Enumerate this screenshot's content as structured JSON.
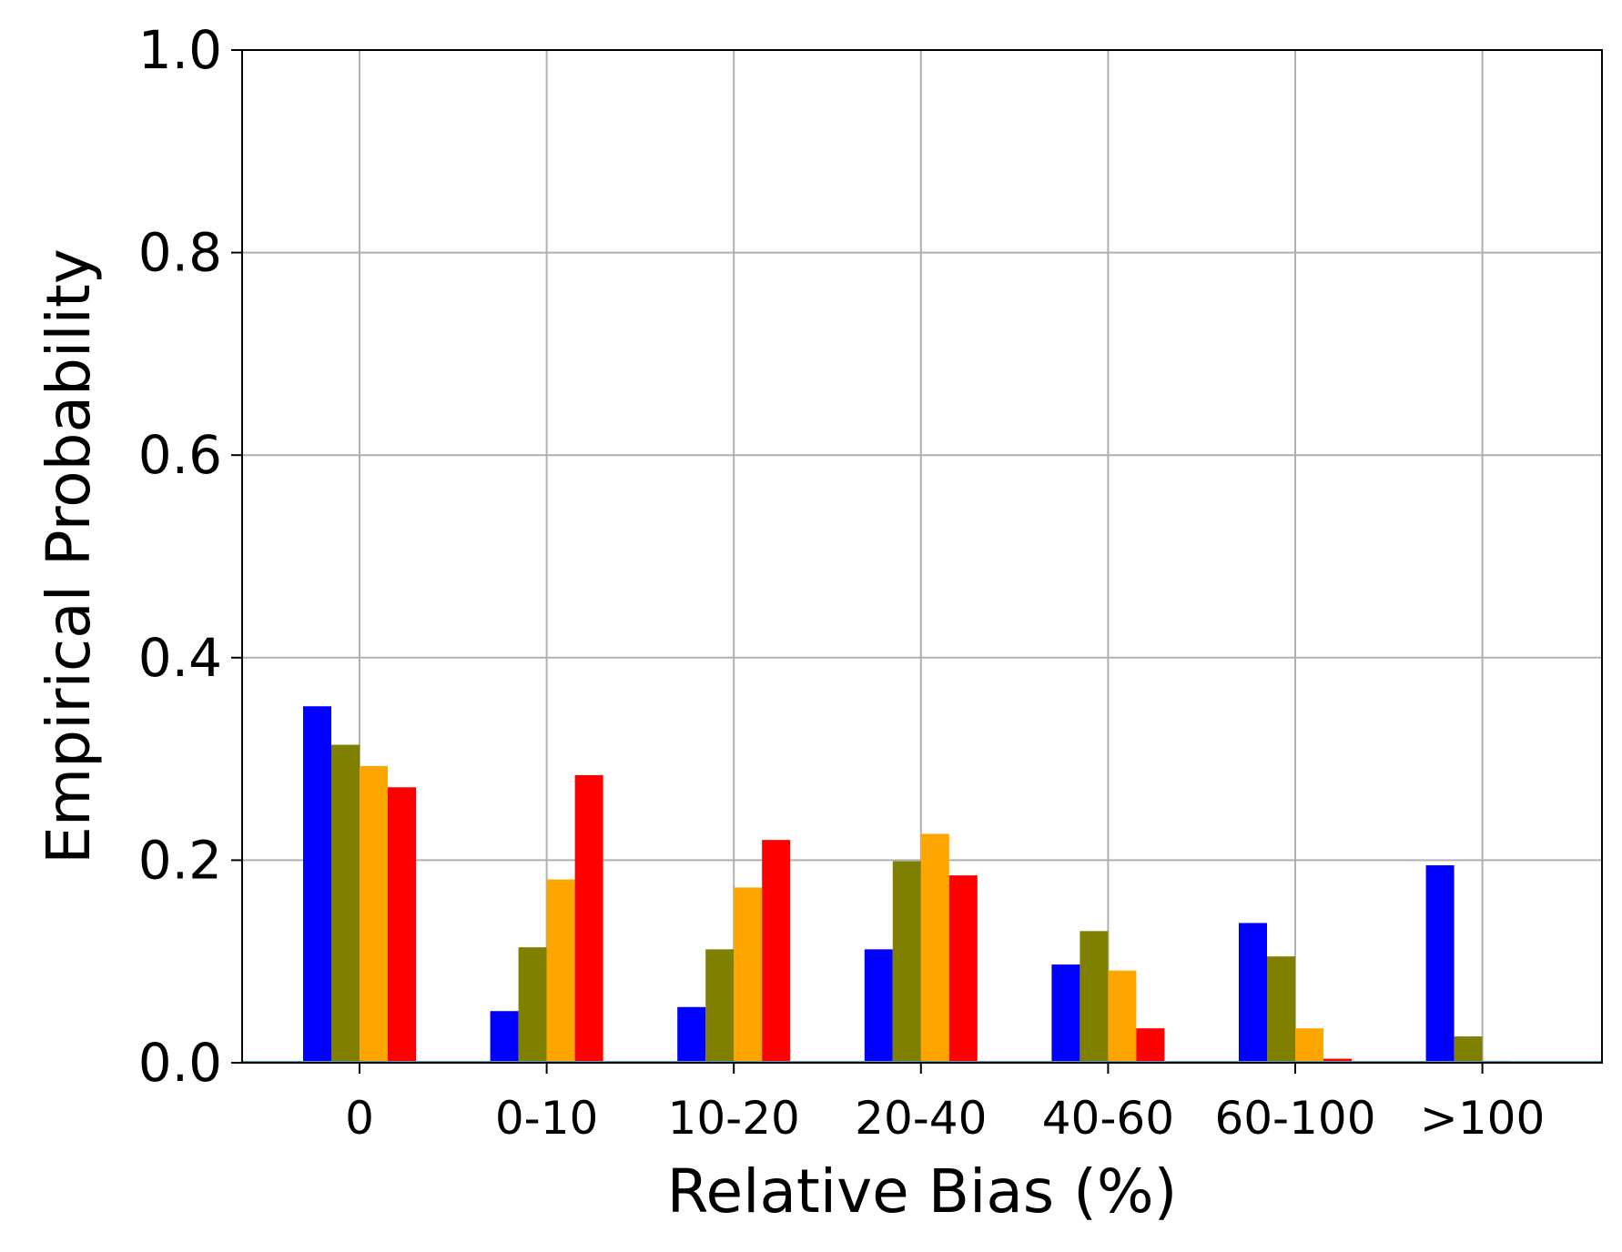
{
  "chart_data": {
    "type": "bar",
    "title": "",
    "xlabel": "Relative Bias (%)",
    "ylabel": "Empirical Probability",
    "categories": [
      "0",
      "0-10",
      "10-20",
      "20-40",
      "40-60",
      "60-100",
      ">100"
    ],
    "ylim": [
      0,
      1.0
    ],
    "yticks": [
      "0.0",
      "0.2",
      "0.4",
      "0.6",
      "0.8",
      "1.0"
    ],
    "grid": true,
    "legend": "none",
    "series": [
      {
        "color": "#0000ff",
        "values": [
          0.352,
          0.051,
          0.055,
          0.112,
          0.097,
          0.138,
          0.195
        ]
      },
      {
        "color": "#808000",
        "values": [
          0.314,
          0.114,
          0.112,
          0.199,
          0.13,
          0.105,
          0.026
        ]
      },
      {
        "color": "#ffa500",
        "values": [
          0.293,
          0.181,
          0.173,
          0.226,
          0.091,
          0.034,
          0.002
        ]
      },
      {
        "color": "#ff0000",
        "values": [
          0.272,
          0.284,
          0.22,
          0.185,
          0.034,
          0.004,
          0.0
        ]
      }
    ]
  }
}
